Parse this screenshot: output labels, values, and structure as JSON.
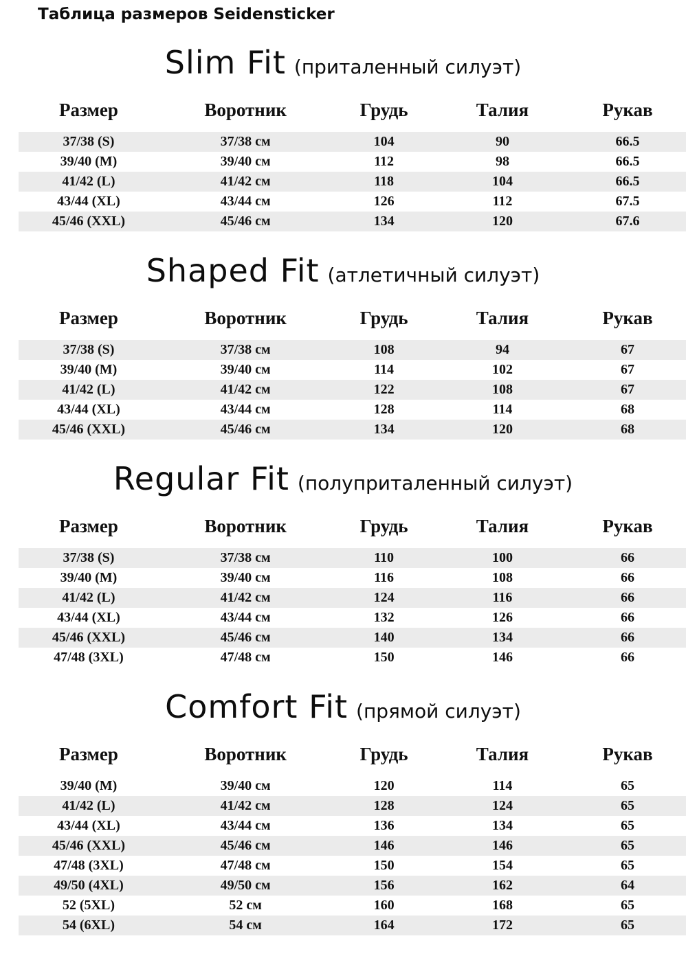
{
  "page_title": "Таблица размеров Seidensticker",
  "columns": [
    "Размер",
    "Воротник",
    "Грудь",
    "Талия",
    "Рукав"
  ],
  "colors": {
    "background": "#ffffff",
    "stripe": "#ebebeb",
    "text": "#111111"
  },
  "sections": [
    {
      "name": "Slim Fit",
      "subtitle": "(приталенный силуэт)",
      "first_row_shaded": true,
      "rows": [
        [
          "37/38 (S)",
          "37/38 см",
          "104",
          "90",
          "66.5"
        ],
        [
          "39/40 (M)",
          "39/40 см",
          "112",
          "98",
          "66.5"
        ],
        [
          "41/42 (L)",
          "41/42 см",
          "118",
          "104",
          "66.5"
        ],
        [
          "43/44 (XL)",
          "43/44 см",
          "126",
          "112",
          "67.5"
        ],
        [
          "45/46 (XXL)",
          "45/46 см",
          "134",
          "120",
          "67.6"
        ]
      ]
    },
    {
      "name": "Shaped Fit",
      "subtitle": "(атлетичный силуэт)",
      "first_row_shaded": true,
      "rows": [
        [
          "37/38 (S)",
          "37/38 см",
          "108",
          "94",
          "67"
        ],
        [
          "39/40 (M)",
          "39/40 см",
          "114",
          "102",
          "67"
        ],
        [
          "41/42 (L)",
          "41/42 см",
          "122",
          "108",
          "67"
        ],
        [
          "43/44 (XL)",
          "43/44 см",
          "128",
          "114",
          "68"
        ],
        [
          "45/46 (XXL)",
          "45/46 см",
          "134",
          "120",
          "68"
        ]
      ]
    },
    {
      "name": "Regular Fit",
      "subtitle": "(полуприталенный силуэт)",
      "first_row_shaded": true,
      "rows": [
        [
          "37/38 (S)",
          "37/38 см",
          "110",
          "100",
          "66"
        ],
        [
          "39/40 (M)",
          "39/40 см",
          "116",
          "108",
          "66"
        ],
        [
          "41/42 (L)",
          "41/42 см",
          "124",
          "116",
          "66"
        ],
        [
          "43/44 (XL)",
          "43/44 см",
          "132",
          "126",
          "66"
        ],
        [
          "45/46 (XXL)",
          "45/46 см",
          "140",
          "134",
          "66"
        ],
        [
          "47/48 (3XL)",
          "47/48 см",
          "150",
          "146",
          "66"
        ]
      ]
    },
    {
      "name": "Comfort Fit",
      "subtitle": "(прямой силуэт)",
      "first_row_shaded": false,
      "rows": [
        [
          "39/40 (M)",
          "39/40 см",
          "120",
          "114",
          "65"
        ],
        [
          "41/42 (L)",
          "41/42 см",
          "128",
          "124",
          "65"
        ],
        [
          "43/44 (XL)",
          "43/44 см",
          "136",
          "134",
          "65"
        ],
        [
          "45/46 (XXL)",
          "45/46 см",
          "146",
          "146",
          "65"
        ],
        [
          "47/48 (3XL)",
          "47/48 см",
          "150",
          "154",
          "65"
        ],
        [
          "49/50 (4XL)",
          "49/50 см",
          "156",
          "162",
          "64"
        ],
        [
          "52 (5XL)",
          "52 см",
          "160",
          "168",
          "65"
        ],
        [
          "54 (6XL)",
          "54 см",
          "164",
          "172",
          "65"
        ]
      ]
    }
  ]
}
